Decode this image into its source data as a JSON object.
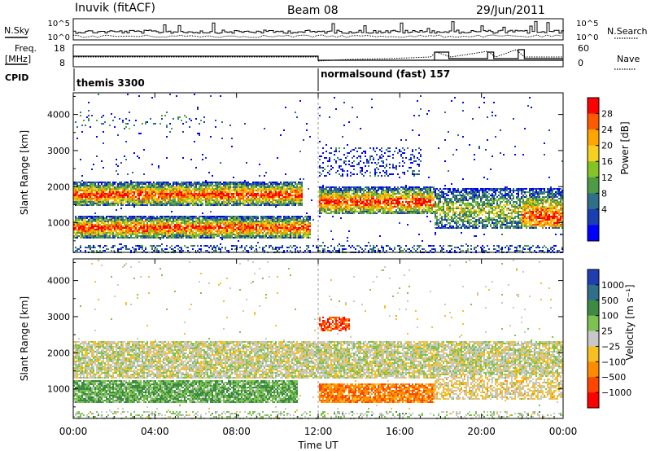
{
  "header": {
    "station": "Inuvik (fitACF)",
    "beam": "Beam 08",
    "date": "29/Jun/2011"
  },
  "param_panels": {
    "nsky_label": "N.Sky",
    "nsky_ticks": [
      "10^5",
      "10^0"
    ],
    "nsearch_label": "N.Search",
    "nsearch_ticks": [
      "10^5",
      "10^0"
    ],
    "freq_label_top": "Freq.",
    "freq_label_bottom": "[MHz]",
    "freq_ticks": [
      "18",
      "8"
    ],
    "nave_label": "Nave",
    "nave_ticks": [
      "60",
      "0"
    ],
    "cpid_label": "CPID",
    "cpid_segments": [
      {
        "label": "themis 3300",
        "start_hour": 0
      },
      {
        "label": "normalsound (fast) 157",
        "start_hour": 12
      }
    ]
  },
  "chart_data": [
    {
      "type": "heatmap",
      "name": "power",
      "ylabel": "Slant Range [km]",
      "ylim": [
        180,
        4600
      ],
      "yticks": [
        1000,
        2000,
        3000,
        4000
      ],
      "xlim_hours": [
        0,
        24
      ],
      "colorbar": {
        "label": "Power [dB]",
        "ticks": [
          "28",
          "24",
          "20",
          "16",
          "12",
          "8",
          "4"
        ],
        "colors": [
          "#ff0000",
          "#ff5a00",
          "#ffa500",
          "#f5d020",
          "#84c225",
          "#4f9b45",
          "#2f6f8a",
          "#1a3fb0",
          "#0000ff"
        ]
      },
      "bands": [
        {
          "from_hour": 0,
          "to_hour": 11,
          "range_km": [
            1500,
            2100
          ],
          "level": "strong"
        },
        {
          "from_hour": 0,
          "to_hour": 11.5,
          "range_km": [
            650,
            1150
          ],
          "level": "strong"
        },
        {
          "from_hour": 12,
          "to_hour": 17.7,
          "range_km": [
            1300,
            2000
          ],
          "level": "strong"
        },
        {
          "from_hour": 17.7,
          "to_hour": 24,
          "range_km": [
            900,
            1900
          ],
          "level": "mixed"
        }
      ]
    },
    {
      "type": "heatmap",
      "name": "velocity",
      "ylabel": "Slant Range [km]",
      "ylim": [
        180,
        4600
      ],
      "yticks": [
        1000,
        2000,
        3000,
        4000
      ],
      "xlim_hours": [
        0,
        24
      ],
      "xlabel": "Time UT",
      "xticks": [
        "00:00",
        "04:00",
        "08:00",
        "12:00",
        "16:00",
        "20:00",
        "00:00"
      ],
      "colorbar": {
        "label": "Velocity [m s⁻¹]",
        "ticks": [
          "1000",
          "500",
          "100",
          "25",
          "−25",
          "−100",
          "−500",
          "−1000"
        ],
        "colors": [
          "#1f3fb0",
          "#2f6f8a",
          "#3d8a45",
          "#7cc250",
          "#c8c8c8",
          "#f5c020",
          "#ff8c00",
          "#ff4500",
          "#ff0000"
        ]
      },
      "bands": [
        {
          "from_hour": 0,
          "to_hour": 24,
          "range_km": [
            1300,
            2300
          ],
          "level": "near-zero"
        },
        {
          "from_hour": 0,
          "to_hour": 11,
          "range_km": [
            700,
            1200
          ],
          "level": "positive"
        },
        {
          "from_hour": 12,
          "to_hour": 17.7,
          "range_km": [
            700,
            1100
          ],
          "level": "negative"
        }
      ]
    }
  ]
}
